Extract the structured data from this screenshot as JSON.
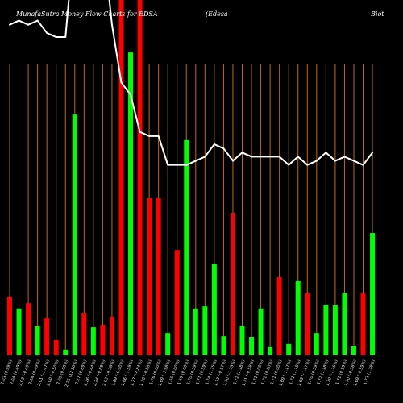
{
  "chart_data": {
    "type": "bar",
    "title_parts": [
      "MunafaSutra Money Flow Charts for EDSA",
      "(Edesa",
      "Biot"
    ],
    "categories": [
      "2.03 (0.99%)",
      "2.04 (0.49%)",
      "2.03 (-0.49%)",
      "2.04 (0.49%)",
      "2.01 (-1.47%)",
      "2.00 (-0.50%)",
      "2.00 (0.00%)",
      "2.25 (12.50%)",
      "2.27 (0.89%)",
      "2.26 (-0.44%)",
      "2.24 (-0.88%)",
      "2.03 (-9.38%)",
      "1.89 (-6.90%)",
      "1.86 (-1.59%)",
      "1.77 (-4.84%)",
      "1.76 (-0.56%)",
      "1.76 (0.00%)",
      "1.69 (-3.98%)",
      "1.69 (0.00%)",
      "1.69 (0.00%)",
      "1.70 (0.59%)",
      "1.71 (0.59%)",
      "1.74 (1.75%)",
      "1.73 (-0.57%)",
      "1.70 (-1.73%)",
      "1.72 (1.18%)",
      "1.71 (-0.58%)",
      "1.71 (0.00%)",
      "1.71 (0.00%)",
      "1.71 (0.00%)",
      "1.69 (-1.17%)",
      "1.71 (1.18%)",
      "1.69 (-1.17%)",
      "1.70 (0.59%)",
      "1.72 (1.18%)",
      "1.70 (-1.16%)",
      "1.71 (0.59%)",
      "1.70 (-0.58%)",
      "1.69 (-0.59%)",
      "1.72 (1.78%)"
    ],
    "series": [
      {
        "type": "bar",
        "values": [
          16.4,
          13.0,
          14.5,
          8.2,
          10.2,
          4.1,
          1.4,
          67.7,
          11.8,
          7.7,
          8.4,
          10.7,
          100,
          85.2,
          100,
          44.1,
          44.1,
          6.1,
          29.5,
          60.5,
          13.0,
          13.6,
          25.5,
          5.2,
          40.0,
          8.2,
          5.0,
          13.0,
          2.3,
          21.8,
          3.0,
          20.7,
          17.3,
          6.1,
          14.1,
          13.9,
          17.3,
          2.5,
          17.5,
          34.3
        ],
        "bar_colors": [
          "down",
          "up",
          "down",
          "up",
          "down",
          "down",
          "up",
          "up",
          "down",
          "up",
          "down",
          "down",
          "down",
          "up",
          "down",
          "down",
          "down",
          "up",
          "down",
          "up",
          "up",
          "up",
          "up",
          "up",
          "down",
          "up",
          "up",
          "up",
          "up",
          "down",
          "up",
          "up",
          "down",
          "up",
          "up",
          "up",
          "up",
          "up",
          "down",
          "up"
        ]
      },
      {
        "type": "line",
        "values": [
          2.03,
          2.04,
          2.03,
          2.04,
          2.01,
          2.0,
          2.0,
          2.25,
          2.27,
          2.26,
          2.24,
          2.03,
          1.89,
          1.86,
          1.77,
          1.76,
          1.76,
          1.69,
          1.69,
          1.69,
          1.7,
          1.71,
          1.74,
          1.73,
          1.7,
          1.72,
          1.71,
          1.71,
          1.71,
          1.71,
          1.69,
          1.71,
          1.69,
          1.7,
          1.72,
          1.7,
          1.71,
          1.7,
          1.69,
          1.72
        ]
      }
    ],
    "ylim": [
      0,
      100
    ],
    "y2lim": [
      1.23,
      2.09
    ],
    "grid": true,
    "legend": "none",
    "colors": {
      "background": "#000000",
      "grid": "#c06a1a",
      "up": "#00ff00",
      "down": "#ff0000",
      "line": "#ffffff",
      "text": "#ffffff"
    }
  }
}
